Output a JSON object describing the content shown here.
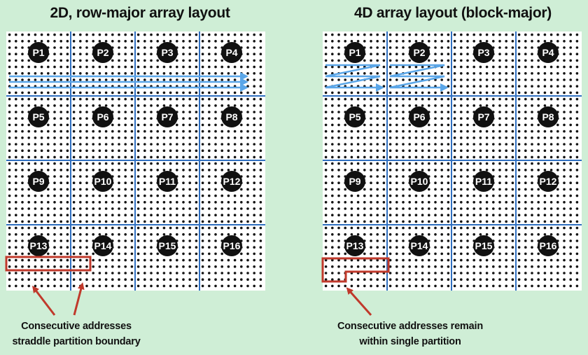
{
  "left_panel": {
    "title": "2D, row-major array layout",
    "caption_line1": "Consecutive addresses",
    "caption_line2": "straddle partition boundary"
  },
  "right_panel": {
    "title": "4D array layout (block-major)",
    "caption_line1": "Consecutive addresses remain",
    "caption_line2": "within single partition"
  },
  "partitions": [
    "P1",
    "P2",
    "P3",
    "P4",
    "P5",
    "P6",
    "P7",
    "P8",
    "P9",
    "P10",
    "P11",
    "P12",
    "P13",
    "P14",
    "P15",
    "P16"
  ],
  "colors": {
    "background": "#cfeed6",
    "grid_line": "#2f6fc0",
    "arrow": "#5aa6e8",
    "highlight": "#c0392b",
    "dot": "#111111",
    "label_bg": "#111111",
    "label_text": "#ffffff"
  }
}
